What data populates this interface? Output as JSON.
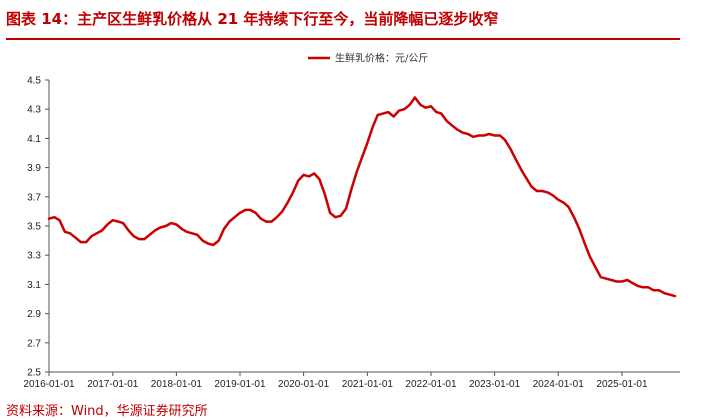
{
  "title": "图表 14：主产区生鲜乳价格从 21 年持续下行至今，当前降幅已逐步收窄",
  "source": "资料来源：Wind，华源证券研究所",
  "colors": {
    "accent": "#c00000",
    "series": "#cc0000"
  },
  "chart_data": {
    "type": "line",
    "legend": [
      "生鲜乳价格：元/公斤"
    ],
    "legend_position": "top-center",
    "grid": false,
    "ylim": [
      2.5,
      4.5
    ],
    "y_ticks": [
      "2.5",
      "2.7",
      "2.9",
      "3.1",
      "3.3",
      "3.5",
      "3.7",
      "3.9",
      "4.1",
      "4.3",
      "4.5"
    ],
    "x_ticks": [
      "2016-01-01",
      "2017-01-01",
      "2018-01-01",
      "2019-01-01",
      "2020-01-01",
      "2021-01-01",
      "2022-01-01",
      "2023-01-01",
      "2024-01-01",
      "2025-01-01"
    ],
    "xlim": [
      "2016-01-01",
      "2025-11-30"
    ],
    "series": [
      {
        "name": "生鲜乳价格：元/公斤",
        "x": [
          "2016-01-01",
          "2016-02-01",
          "2016-03-01",
          "2016-04-01",
          "2016-05-01",
          "2016-06-01",
          "2016-07-01",
          "2016-08-01",
          "2016-09-01",
          "2016-10-01",
          "2016-11-01",
          "2016-12-01",
          "2017-01-01",
          "2017-02-01",
          "2017-03-01",
          "2017-04-01",
          "2017-05-01",
          "2017-06-01",
          "2017-07-01",
          "2017-08-01",
          "2017-09-01",
          "2017-10-01",
          "2017-11-01",
          "2017-12-01",
          "2018-01-01",
          "2018-02-01",
          "2018-03-01",
          "2018-04-01",
          "2018-05-01",
          "2018-06-01",
          "2018-07-01",
          "2018-08-01",
          "2018-09-01",
          "2018-10-01",
          "2018-11-01",
          "2018-12-01",
          "2019-01-01",
          "2019-02-01",
          "2019-03-01",
          "2019-04-01",
          "2019-05-01",
          "2019-06-01",
          "2019-07-01",
          "2019-08-01",
          "2019-09-01",
          "2019-10-01",
          "2019-11-01",
          "2019-12-01",
          "2020-01-01",
          "2020-02-01",
          "2020-03-01",
          "2020-04-01",
          "2020-05-01",
          "2020-06-01",
          "2020-07-01",
          "2020-08-01",
          "2020-09-01",
          "2020-10-01",
          "2020-11-01",
          "2020-12-01",
          "2021-01-01",
          "2021-02-01",
          "2021-03-01",
          "2021-04-01",
          "2021-05-01",
          "2021-06-01",
          "2021-07-01",
          "2021-08-01",
          "2021-09-01",
          "2021-10-01",
          "2021-11-01",
          "2021-12-01",
          "2022-01-01",
          "2022-02-01",
          "2022-03-01",
          "2022-04-01",
          "2022-05-01",
          "2022-06-01",
          "2022-07-01",
          "2022-08-01",
          "2022-09-01",
          "2022-10-01",
          "2022-11-01",
          "2022-12-01",
          "2023-01-01",
          "2023-02-01",
          "2023-03-01",
          "2023-04-01",
          "2023-05-01",
          "2023-06-01",
          "2023-07-01",
          "2023-08-01",
          "2023-09-01",
          "2023-10-01",
          "2023-11-01",
          "2023-12-01",
          "2024-01-01",
          "2024-02-01",
          "2024-03-01",
          "2024-04-01",
          "2024-05-01",
          "2024-06-01",
          "2024-07-01",
          "2024-08-01",
          "2024-09-01",
          "2024-10-01",
          "2024-11-01",
          "2024-12-01",
          "2025-01-01",
          "2025-02-01",
          "2025-03-01",
          "2025-04-01",
          "2025-05-01",
          "2025-06-01",
          "2025-07-01",
          "2025-08-01",
          "2025-09-01",
          "2025-10-01",
          "2025-11-01"
        ],
        "values": [
          3.55,
          3.56,
          3.54,
          3.46,
          3.45,
          3.42,
          3.39,
          3.39,
          3.43,
          3.45,
          3.47,
          3.51,
          3.54,
          3.53,
          3.52,
          3.47,
          3.43,
          3.41,
          3.41,
          3.44,
          3.47,
          3.49,
          3.5,
          3.52,
          3.51,
          3.48,
          3.46,
          3.45,
          3.44,
          3.4,
          3.38,
          3.37,
          3.4,
          3.48,
          3.53,
          3.56,
          3.59,
          3.61,
          3.61,
          3.59,
          3.55,
          3.53,
          3.53,
          3.56,
          3.6,
          3.66,
          3.73,
          3.81,
          3.85,
          3.84,
          3.86,
          3.82,
          3.72,
          3.59,
          3.56,
          3.57,
          3.62,
          3.75,
          3.87,
          3.97,
          4.07,
          4.18,
          4.26,
          4.27,
          4.28,
          4.25,
          4.29,
          4.3,
          4.33,
          4.38,
          4.33,
          4.31,
          4.32,
          4.28,
          4.27,
          4.22,
          4.19,
          4.16,
          4.14,
          4.13,
          4.11,
          4.12,
          4.12,
          4.13,
          4.12,
          4.12,
          4.09,
          4.03,
          3.96,
          3.89,
          3.83,
          3.77,
          3.74,
          3.74,
          3.73,
          3.71,
          3.68,
          3.66,
          3.63,
          3.56,
          3.48,
          3.38,
          3.29,
          3.22,
          3.15,
          3.14,
          3.13,
          3.12,
          3.12,
          3.13,
          3.11,
          3.09,
          3.08,
          3.08,
          3.06,
          3.06,
          3.04,
          3.03,
          3.02
        ]
      }
    ]
  }
}
